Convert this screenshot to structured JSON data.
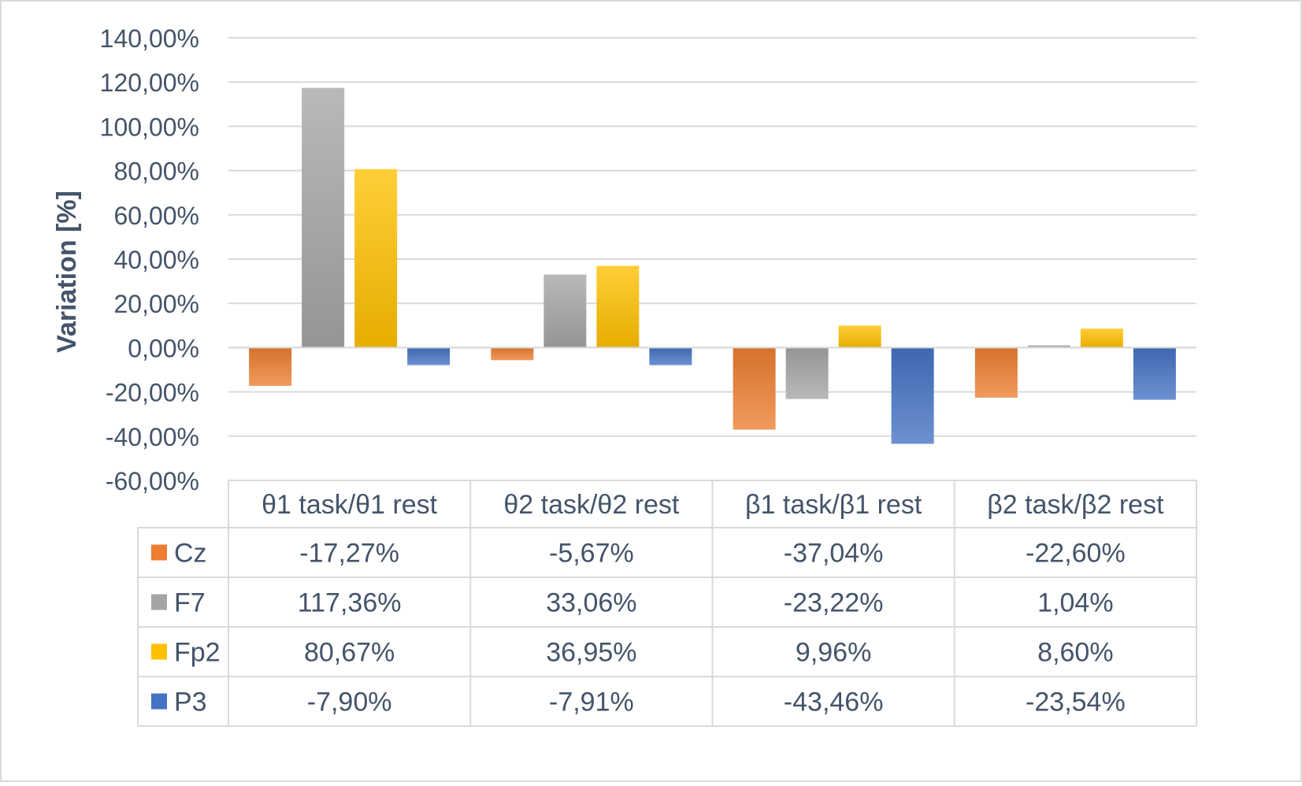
{
  "chart_data": {
    "type": "bar",
    "title": "",
    "ylabel": "Variation [%]",
    "xlabel": "",
    "categories": [
      "θ1 task/θ1 rest",
      "θ2 task/θ2 rest",
      "β1 task/β1 rest",
      "β2 task/β2 rest"
    ],
    "ylim": [
      -60,
      140
    ],
    "yticks": [
      140,
      120,
      100,
      80,
      60,
      40,
      20,
      0,
      -20,
      -40,
      -60
    ],
    "ytick_labels": [
      "140,00%",
      "120,00%",
      "100,00%",
      "80,00%",
      "60,00%",
      "40,00%",
      "20,00%",
      "0,00%",
      "-20,00%",
      "-40,00%",
      "-60,00%"
    ],
    "grid": true,
    "legend": "data-table",
    "series": [
      {
        "name": "Cz",
        "color": "#ed7d31",
        "values": [
          -17.27,
          -5.67,
          -37.04,
          -22.6
        ],
        "labels": [
          "-17,27%",
          "-5,67%",
          "-37,04%",
          "-22,60%"
        ]
      },
      {
        "name": "F7",
        "color": "#a5a5a5",
        "values": [
          117.36,
          33.06,
          -23.22,
          1.04
        ],
        "labels": [
          "117,36%",
          "33,06%",
          "-23,22%",
          "1,04%"
        ]
      },
      {
        "name": "Fp2",
        "color": "#ffc000",
        "values": [
          80.67,
          36.95,
          9.96,
          8.6
        ],
        "labels": [
          "80,67%",
          "36,95%",
          "9,96%",
          "8,60%"
        ]
      },
      {
        "name": "P3",
        "color": "#4472c4",
        "values": [
          -7.9,
          -7.91,
          -43.46,
          -23.54
        ],
        "labels": [
          "-7,90%",
          "-7,91%",
          "-43,46%",
          "-23,54%"
        ]
      }
    ]
  }
}
